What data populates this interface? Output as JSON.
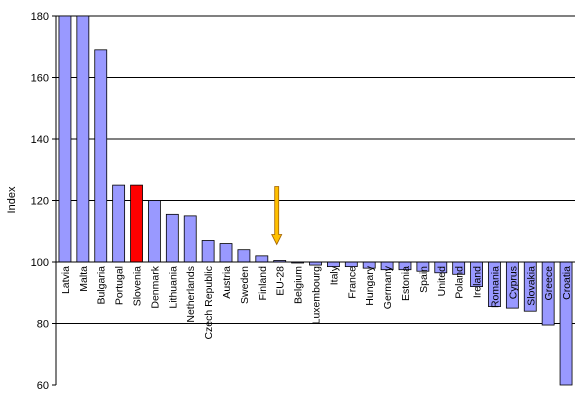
{
  "chart_data": {
    "type": "bar",
    "title": "",
    "xlabel": "",
    "ylabel": "Index",
    "ylim": [
      60,
      180
    ],
    "yticks": [
      60,
      80,
      100,
      120,
      140,
      160,
      180
    ],
    "baseline": 100,
    "grid": true,
    "legend": "none",
    "colors": {
      "bar": "#9999FF",
      "highlight": "#FF0000",
      "bar_outline": "#000000",
      "arrow": "#FFC000",
      "arrow_outline": "#A06000"
    },
    "highlight_category": "Slovenia",
    "arrow_category": "EU-28",
    "categories": [
      "Latvia",
      "Malta",
      "Bulgaria",
      "Portugal",
      "Slovenia",
      "Denmark",
      "Lithuania",
      "Netherlands",
      "Czech Republic",
      "Austria",
      "Sweden",
      "Finland",
      "EU-28",
      "Belgium",
      "Luxembourg",
      "Italy",
      "France",
      "Hungary",
      "Germany",
      "Estonia",
      "Spain",
      "United",
      "Poland",
      "Ireland",
      "Romania",
      "Cyprus",
      "Slovakia",
      "Greece",
      "Croatia"
    ],
    "values": [
      182,
      185,
      169,
      125,
      125,
      120,
      115.5,
      115,
      107,
      106,
      104,
      102,
      100.5,
      100,
      99,
      98.5,
      98.5,
      98,
      97.5,
      97.5,
      97,
      96.5,
      96,
      92,
      85.5,
      85,
      84,
      79.5,
      57
    ]
  }
}
